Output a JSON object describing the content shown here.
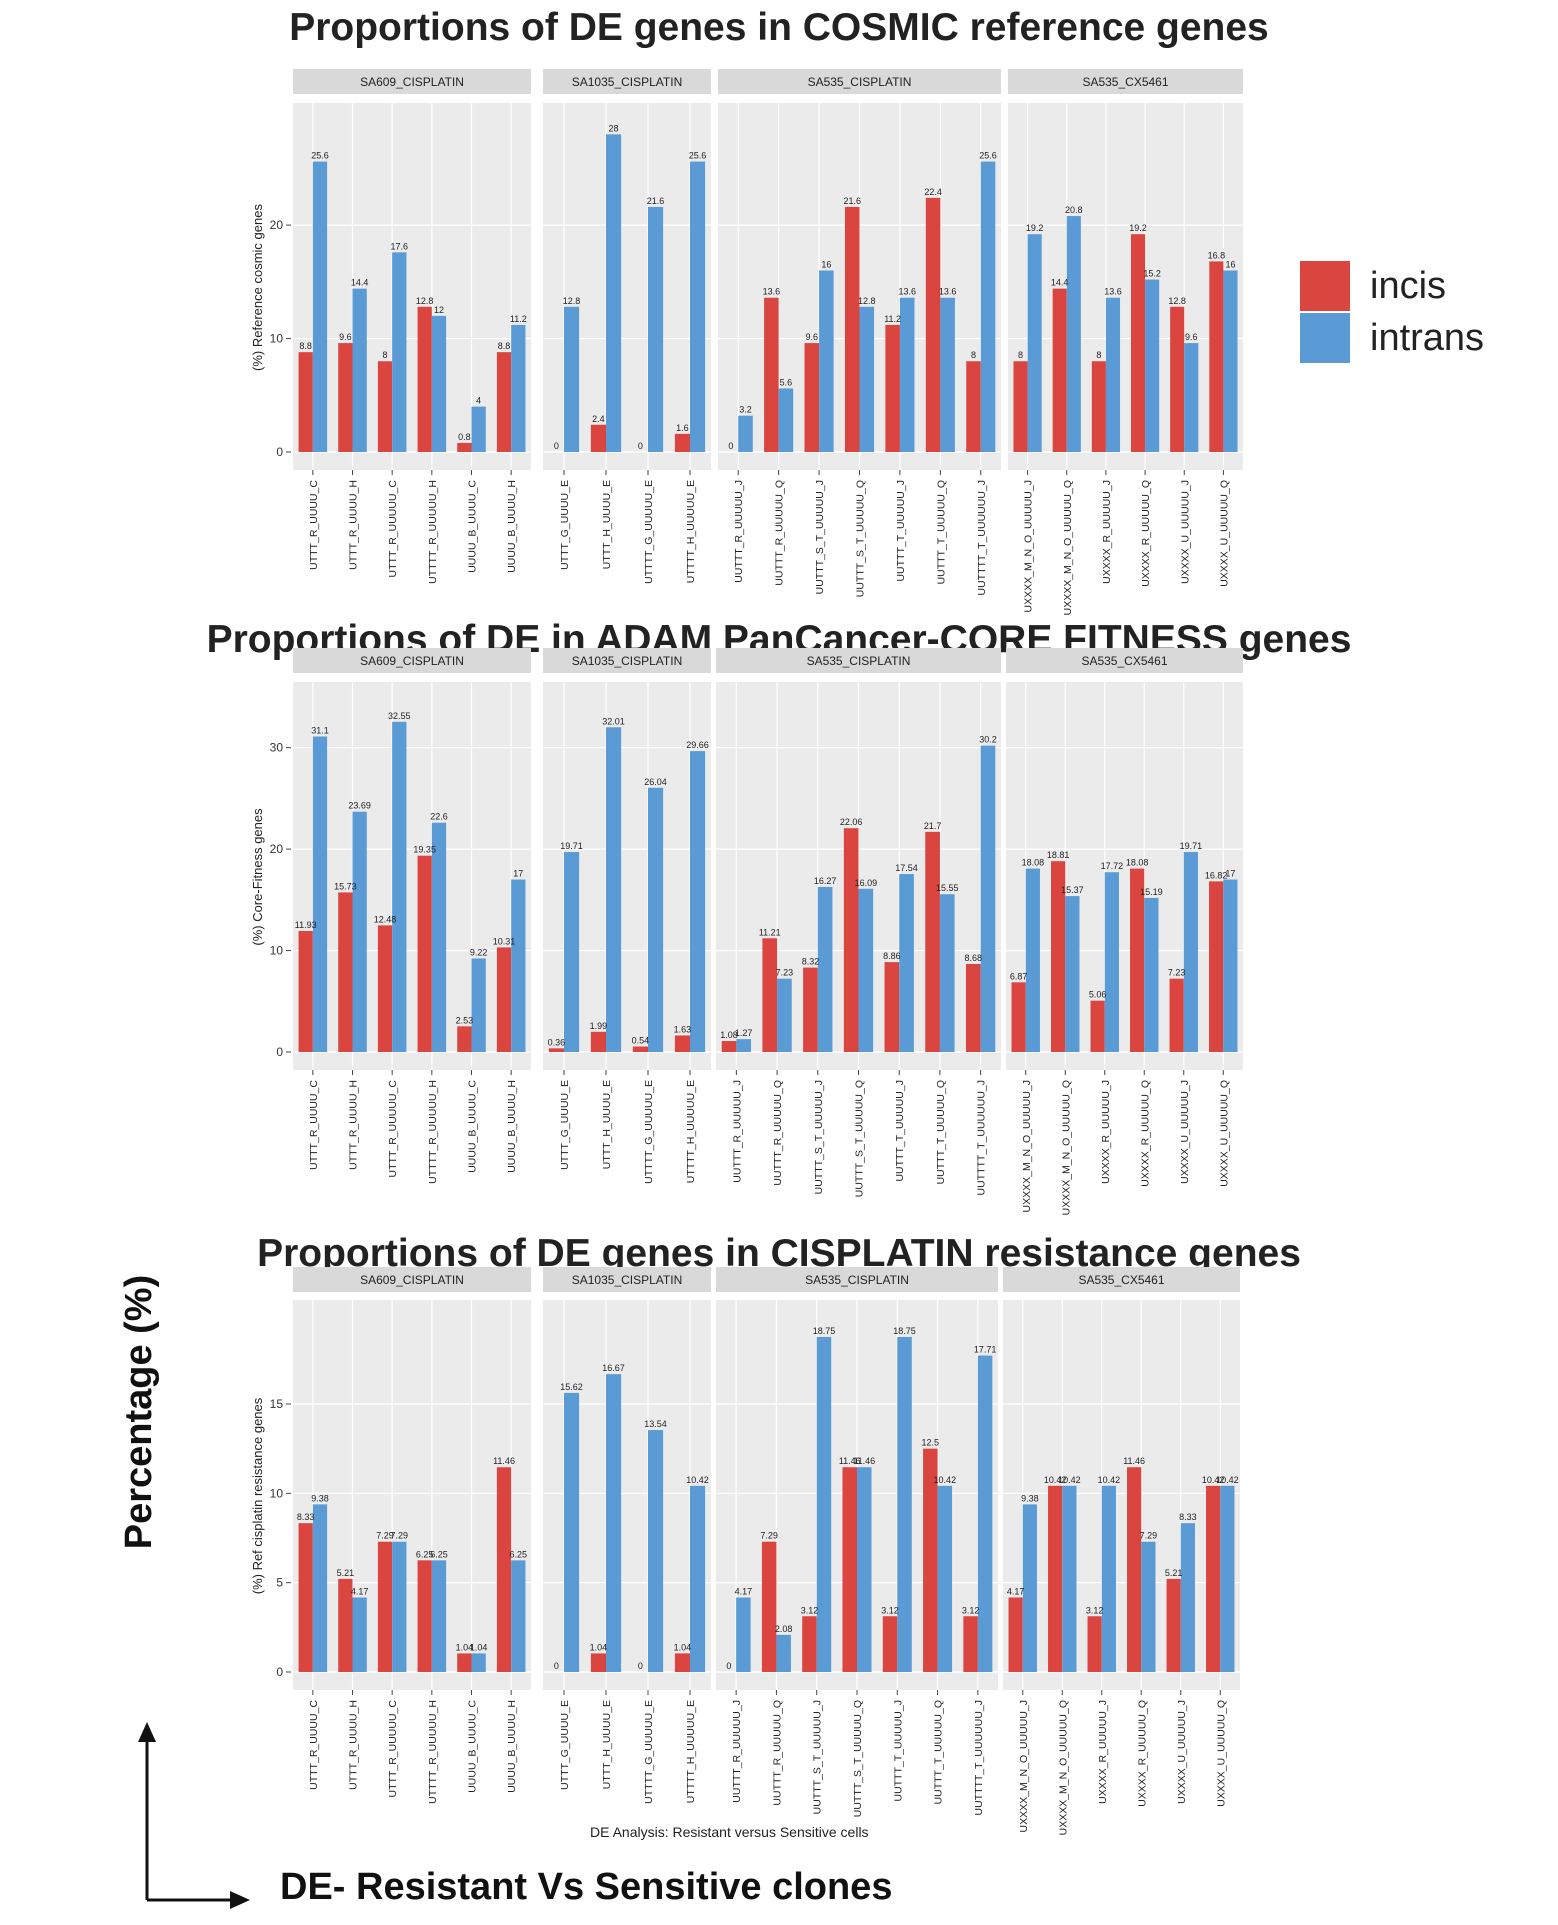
{
  "titles": {
    "t1": "Proportions of DE genes in COSMIC reference genes",
    "t2": "Proportions of DE in ADAM PanCancer-CORE FITNESS genes",
    "t3": "Proportions of DE genes in CISPLATIN resistance genes"
  },
  "legend": {
    "incis": "incis",
    "intrans": "intrans"
  },
  "colors": {
    "incis": "#DB4540",
    "intrans": "#5B9BD5"
  },
  "axis_label_big": "Percentage (%)",
  "x_caption": "DE Analysis: Resistant versus Sensitive cells",
  "bottom_label": "DE- Resistant Vs Sensitive clones",
  "chart_data": [
    {
      "type": "bar",
      "ylabel": "(%) Reference cosmic genes",
      "ylim": [
        0,
        29
      ],
      "yticks": [
        0,
        10,
        20
      ],
      "series": [
        {
          "name": "incis"
        },
        {
          "name": "intrans"
        }
      ],
      "facets": [
        {
          "name": "SA609_CISPLATIN",
          "categories": [
            "UTTT_R_UUUU_C",
            "UTTT_R_UUUU_H",
            "UTTT_R_UUUUU_C",
            "UTTTT_R_UUUUU_H",
            "UUUU_B_UUUU_C",
            "UUUU_B_UUUU_H"
          ],
          "incis": [
            8.8,
            9.6,
            8,
            12.8,
            0.8,
            8.8
          ],
          "intrans": [
            25.6,
            14.4,
            17.6,
            12,
            4,
            11.2
          ]
        },
        {
          "name": "SA1035_CISPLATIN",
          "categories": [
            "UTTT_G_UUUU_E",
            "UTTT_H_UUUU_E",
            "UTTTT_G_UUUUU_E",
            "UTTTT_H_UUUUU_E"
          ],
          "incis": [
            0,
            2.4,
            0,
            1.6
          ],
          "intrans": [
            12.8,
            28,
            21.6,
            25.6
          ]
        },
        {
          "name": "SA535_CISPLATIN",
          "categories": [
            "UUTTT_R_UUUUU_J",
            "UUTTT_R_UUUUU_Q",
            "UUTTT_S_T_UUUUU_J",
            "UUTTT_S_T_UUUUU_Q",
            "UUTTT_T_UUUUU_J",
            "UUTTT_T_UUUUU_Q",
            "UUTTTT_T_UUUUUU_J"
          ],
          "incis": [
            0,
            13.6,
            9.6,
            21.6,
            11.2,
            22.4,
            8
          ],
          "intrans": [
            3.2,
            5.6,
            16,
            12.8,
            13.6,
            13.6,
            25.6
          ]
        },
        {
          "name": "SA535_CX5461",
          "categories": [
            "UXXXX_M_N_O_UUUUU_J",
            "UXXXX_M_N_O_UUUUU_Q",
            "UXXXX_R_UUUUU_J",
            "UXXXX_R_UUUUU_Q",
            "UXXXX_U_UUUUU_J",
            "UXXXX_U_UUUUU_Q"
          ],
          "incis": [
            8,
            14.4,
            8,
            19.2,
            12.8,
            16.8
          ],
          "intrans": [
            19.2,
            20.8,
            13.6,
            15.2,
            9.6,
            16
          ]
        }
      ]
    },
    {
      "type": "bar",
      "ylabel": "(%) Core-Fitness genes",
      "ylim": [
        0,
        34.5
      ],
      "yticks": [
        0,
        10,
        20,
        30
      ],
      "series": [
        {
          "name": "incis"
        },
        {
          "name": "intrans"
        }
      ],
      "facets": [
        {
          "name": "SA609_CISPLATIN",
          "categories": [
            "UTTT_R_UUUU_C",
            "UTTT_R_UUUU_H",
            "UTTT_R_UUUUU_C",
            "UTTTT_R_UUUUU_H",
            "UUUU_B_UUUU_C",
            "UUUU_B_UUUU_H"
          ],
          "incis": [
            11.93,
            15.73,
            12.48,
            19.35,
            2.53,
            10.31
          ],
          "intrans": [
            31.1,
            23.69,
            32.55,
            22.6,
            9.22,
            17
          ]
        },
        {
          "name": "SA1035_CISPLATIN",
          "categories": [
            "UTTT_G_UUUU_E",
            "UTTT_H_UUUU_E",
            "UTTTT_G_UUUUU_E",
            "UTTTT_H_UUUUU_E"
          ],
          "incis": [
            0.36,
            1.99,
            0.54,
            1.63
          ],
          "intrans": [
            19.71,
            32.01,
            26.04,
            29.66
          ]
        },
        {
          "name": "SA535_CISPLATIN",
          "categories": [
            "UUTTT_R_UUUUU_J",
            "UUTTT_R_UUUUU_Q",
            "UUTTT_S_T_UUUUU_J",
            "UUTTT_S_T_UUUUU_Q",
            "UUTTT_T_UUUUU_J",
            "UUTTT_T_UUUUU_Q",
            "UUTTTT_T_UUUUUU_J"
          ],
          "incis": [
            1.08,
            11.21,
            8.32,
            22.06,
            8.86,
            21.7,
            8.68
          ],
          "intrans": [
            1.27,
            7.23,
            16.27,
            16.09,
            17.54,
            15.55,
            30.2
          ]
        },
        {
          "name": "SA535_CX5461",
          "categories": [
            "UXXXX_M_N_O_UUUUU_J",
            "UXXXX_M_N_O_UUUUU_Q",
            "UXXXX_R_UUUUU_J",
            "UXXXX_R_UUUUU_Q",
            "UXXXX_U_UUUUU_J",
            "UXXXX_U_UUUUU_Q"
          ],
          "incis": [
            6.87,
            18.81,
            5.06,
            18.08,
            7.23,
            16.82
          ],
          "intrans": [
            18.08,
            15.37,
            17.72,
            15.19,
            19.71,
            17
          ]
        }
      ]
    },
    {
      "type": "bar",
      "ylabel": "(%) Ref cisplatin resistance genes",
      "ylim": [
        0,
        19.7
      ],
      "yticks": [
        0,
        5,
        10,
        15
      ],
      "series": [
        {
          "name": "incis"
        },
        {
          "name": "intrans"
        }
      ],
      "facets": [
        {
          "name": "SA609_CISPLATIN",
          "categories": [
            "UTTT_R_UUUU_C",
            "UTTT_R_UUUU_H",
            "UTTT_R_UUUUU_C",
            "UTTTT_R_UUUUU_H",
            "UUUU_B_UUUU_C",
            "UUUU_B_UUUU_H"
          ],
          "incis": [
            8.33,
            5.21,
            7.29,
            6.25,
            1.04,
            11.46
          ],
          "intrans": [
            9.38,
            4.17,
            7.29,
            6.25,
            1.04,
            6.25
          ]
        },
        {
          "name": "SA1035_CISPLATIN",
          "categories": [
            "UTTT_G_UUUU_E",
            "UTTT_H_UUUU_E",
            "UTTTT_G_UUUUU_E",
            "UTTTT_H_UUUUU_E"
          ],
          "incis": [
            0,
            1.04,
            0,
            1.04
          ],
          "intrans": [
            15.62,
            16.67,
            13.54,
            10.42
          ]
        },
        {
          "name": "SA535_CISPLATIN",
          "categories": [
            "UUTTT_R_UUUUU_J",
            "UUTTT_R_UUUUU_Q",
            "UUTTT_S_T_UUUUU_J",
            "UUTTT_S_T_UUUUU_Q",
            "UUTTT_T_UUUUU_J",
            "UUTTT_T_UUUUU_Q",
            "UUTTTT_T_UUUUUU_J"
          ],
          "incis": [
            0,
            7.29,
            3.12,
            11.46,
            3.12,
            12.5,
            3.12
          ],
          "intrans": [
            4.17,
            2.08,
            18.75,
            11.46,
            18.75,
            10.42,
            17.71
          ]
        },
        {
          "name": "SA535_CX5461",
          "categories": [
            "UXXXX_M_N_O_UUUUU_J",
            "UXXXX_M_N_O_UUUUU_Q",
            "UXXXX_R_UUUUU_J",
            "UXXXX_R_UUUUU_Q",
            "UXXXX_U_UUUUU_J",
            "UXXXX_U_UUUUU_Q"
          ],
          "incis": [
            4.17,
            10.42,
            3.12,
            11.46,
            5.21,
            10.42
          ],
          "intrans": [
            9.38,
            10.42,
            10.42,
            7.29,
            8.33,
            10.42
          ]
        }
      ]
    }
  ]
}
